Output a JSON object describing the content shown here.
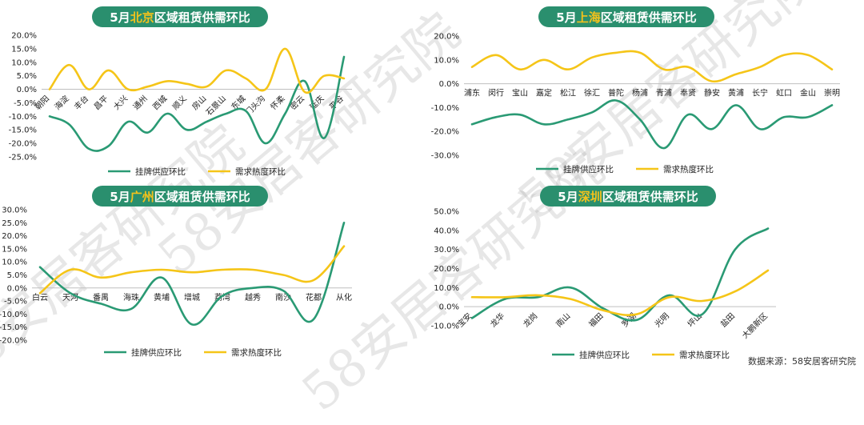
{
  "source": "数据来源：58安居客研究院",
  "watermark": "58安居客研究院",
  "colors": {
    "supply": "#2a9a74",
    "demand": "#f5c518",
    "title_bg": "#2a8f6e",
    "title_city": "#f4c21c"
  },
  "chart_data": [
    {
      "id": "beijing",
      "type": "line",
      "title_prefix": "5月",
      "title_city": "北京",
      "title_suffix": "区域租赁供需环比",
      "categories": [
        "朝阳",
        "海淀",
        "丰台",
        "昌平",
        "大兴",
        "通州",
        "西城",
        "顺义",
        "房山",
        "石景山",
        "东城",
        "门头沟",
        "怀柔",
        "密云",
        "延庆",
        "平谷"
      ],
      "ylim": [
        -25,
        20
      ],
      "yticks": [
        "20.0%",
        "15.0%",
        "10.0%",
        "5.0%",
        "0.0%",
        "-5.0%",
        "-10.0%",
        "-15.0%",
        "-20.0%",
        "-25.0%"
      ],
      "series": [
        {
          "name": "挂牌供应环比",
          "values": [
            -10,
            -13,
            -22,
            -21,
            -12,
            -16,
            -9,
            -15,
            -12,
            -9,
            -8,
            -20,
            -9,
            3,
            -18,
            12
          ]
        },
        {
          "name": "需求热度环比",
          "values": [
            0,
            9,
            0,
            7,
            0,
            1,
            3,
            2,
            1,
            7,
            4,
            0,
            15,
            -1,
            5,
            4
          ]
        }
      ]
    },
    {
      "id": "shanghai",
      "type": "line",
      "title_prefix": "5月",
      "title_city": "上海",
      "title_suffix": "区域租赁供需环比",
      "categories": [
        "浦东",
        "闵行",
        "宝山",
        "嘉定",
        "松江",
        "徐汇",
        "普陀",
        "杨浦",
        "青浦",
        "奉贤",
        "静安",
        "黄浦",
        "长宁",
        "虹口",
        "金山",
        "崇明"
      ],
      "ylim": [
        -30,
        20
      ],
      "yticks": [
        "20.0%",
        "10.0%",
        "0.0%",
        "-10.0%",
        "-20.0%",
        "-30.0%"
      ],
      "series": [
        {
          "name": "挂牌供应环比",
          "values": [
            -17,
            -14,
            -13,
            -17,
            -15,
            -12,
            -7,
            -15,
            -27,
            -13,
            -19,
            -9,
            -19,
            -14,
            -14,
            -9
          ]
        },
        {
          "name": "需求热度环比",
          "values": [
            7,
            12,
            6,
            10,
            6,
            11,
            13,
            13,
            6,
            7,
            1,
            4,
            7,
            12,
            12,
            6
          ]
        }
      ]
    },
    {
      "id": "guangzhou",
      "type": "line",
      "title_prefix": "5月",
      "title_city": "广州",
      "title_suffix": "区域租赁供需环比",
      "categories": [
        "白云",
        "天河",
        "番禺",
        "海珠",
        "黄埔",
        "增城",
        "荔湾",
        "越秀",
        "南沙",
        "花都",
        "从化"
      ],
      "ylim": [
        -20,
        30
      ],
      "yticks": [
        "30.0%",
        "25.0%",
        "20.0%",
        "15.0%",
        "10.0%",
        "5.0%",
        "0.0%",
        "-5.0%",
        "-10.0%",
        "-15.0%",
        "-20.0%"
      ],
      "series": [
        {
          "name": "挂牌供应环比",
          "values": [
            8,
            -2,
            -6,
            -8,
            4,
            -14,
            -3,
            0,
            -1,
            -12,
            25
          ]
        },
        {
          "name": "需求热度环比",
          "values": [
            -2,
            7,
            4,
            6,
            7,
            6,
            7,
            7,
            5,
            3,
            16
          ]
        }
      ]
    },
    {
      "id": "shenzhen",
      "type": "line",
      "title_prefix": "5月",
      "title_city": "深圳",
      "title_suffix": "区域租赁供需环比",
      "categories": [
        "宝安",
        "龙华",
        "龙岗",
        "南山",
        "福田",
        "罗湖",
        "光明",
        "坪山",
        "盐田",
        "大鹏新区"
      ],
      "ylim": [
        -10,
        50
      ],
      "yticks": [
        "50.0%",
        "40.0%",
        "30.0%",
        "20.0%",
        "10.0%",
        "0.0%",
        "-10.0%"
      ],
      "series": [
        {
          "name": "挂牌供应环比",
          "values": [
            -6,
            4,
            5,
            10,
            -1,
            -7,
            6,
            -4,
            30,
            41
          ]
        },
        {
          "name": "需求热度环比",
          "values": [
            5,
            5,
            6,
            4,
            -2,
            -4,
            5,
            3,
            8,
            19
          ]
        }
      ]
    }
  ]
}
